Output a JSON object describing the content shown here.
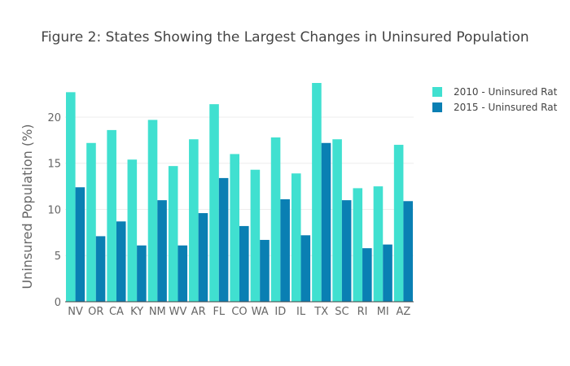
{
  "chart_data": {
    "type": "bar",
    "title": "Figure 2: States Showing the Largest Changes in Uninsured Population",
    "xlabel": "",
    "ylabel": "Uninsured Population (%)",
    "categories": [
      "NV",
      "OR",
      "CA",
      "KY",
      "NM",
      "WV",
      "AR",
      "FL",
      "CO",
      "WA",
      "ID",
      "IL",
      "TX",
      "SC",
      "RI",
      "MI",
      "AZ"
    ],
    "series": [
      {
        "name": "2010 - Uninsured Rat",
        "color": "#40e0d0",
        "values": [
          22.7,
          17.2,
          18.6,
          15.4,
          19.7,
          14.7,
          17.6,
          21.4,
          16.0,
          14.3,
          17.8,
          13.9,
          23.7,
          17.6,
          12.3,
          12.5,
          17.0
        ]
      },
      {
        "name": "2015 - Uninsured Rat",
        "color": "#0a7fb3",
        "values": [
          12.4,
          7.1,
          8.7,
          6.1,
          11.0,
          6.1,
          9.6,
          13.4,
          8.2,
          6.7,
          11.1,
          7.2,
          17.2,
          11.0,
          5.8,
          6.2,
          10.9
        ]
      }
    ],
    "ylim": [
      0,
      23.7
    ],
    "yticks": [
      0,
      5,
      10,
      15,
      20
    ],
    "grid": true,
    "legend": "top-right"
  }
}
